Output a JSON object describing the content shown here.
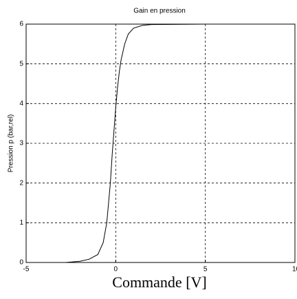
{
  "chart_data": {
    "type": "line",
    "title": "Gain en pression",
    "x_label": "Commande [V]",
    "y_label": "Pression p (bar,rel)",
    "x": [
      -2.8,
      -2,
      -1.5,
      -1,
      -0.7,
      -0.5,
      -0.4,
      -0.3,
      -0.2,
      -0.1,
      0,
      0.1,
      0.2,
      0.3,
      0.5,
      0.7,
      1,
      1.5,
      2,
      5,
      8.5
    ],
    "series": [
      {
        "name": "Pression",
        "color": "#000000",
        "values": [
          0,
          0.03,
          0.08,
          0.2,
          0.5,
          1.0,
          1.5,
          2.0,
          2.7,
          3.3,
          3.9,
          4.4,
          4.8,
          5.1,
          5.5,
          5.75,
          5.9,
          5.97,
          5.99,
          6,
          6
        ]
      }
    ],
    "xlim": [
      -5,
      10
    ],
    "xticks": [
      -5,
      0,
      5,
      10
    ],
    "ylim": [
      0,
      6
    ],
    "yticks": [
      0,
      1,
      2,
      3,
      4,
      5,
      6
    ],
    "grid": true
  }
}
